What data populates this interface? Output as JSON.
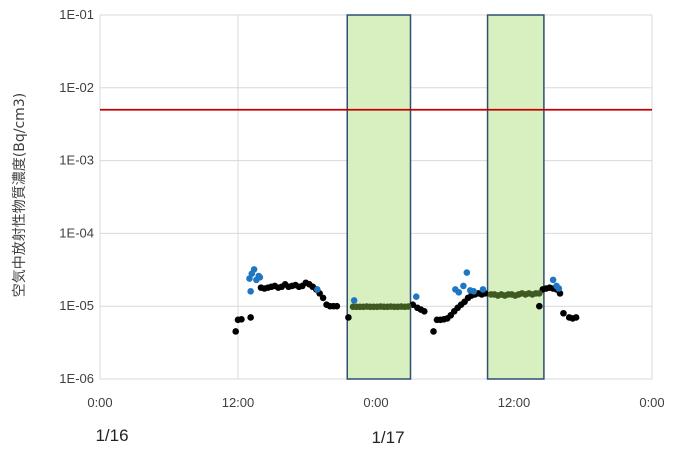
{
  "chart_data": {
    "type": "scatter",
    "ylabel": "空気中放射性物質濃度(Bq/cm3)",
    "y_scale": "log",
    "ylim": [
      1e-06,
      0.1
    ],
    "y_ticks": [
      "1E-06",
      "1E-05",
      "1E-04",
      "1E-03",
      "1E-02",
      "1E-01"
    ],
    "xlim_hours": [
      0,
      48
    ],
    "x_ticks": [
      "0:00",
      "12:00",
      "0:00",
      "12:00",
      "0:00"
    ],
    "date_labels": [
      {
        "text": "1/16",
        "hour": 0
      },
      {
        "text": "1/17",
        "hour": 24
      }
    ],
    "grid": true,
    "threshold": {
      "value": 0.005,
      "color": "#c00000"
    },
    "shaded_regions": [
      {
        "x_start": 21.5,
        "x_end": 27.0,
        "fill": "#d8efc0",
        "border": "#2e4f73"
      },
      {
        "x_start": 33.7,
        "x_end": 38.6,
        "fill": "#d8efc0",
        "border": "#2e4f73"
      }
    ],
    "series": [
      {
        "color": "#000000",
        "points": [
          [
            11.8,
            4.5e-06
          ],
          [
            12.0,
            6.5e-06
          ],
          [
            12.3,
            6.6e-06
          ],
          [
            13.1,
            7e-06
          ],
          [
            14.0,
            1.8e-05
          ],
          [
            14.3,
            1.75e-05
          ],
          [
            14.6,
            1.8e-05
          ],
          [
            14.9,
            1.85e-05
          ],
          [
            15.2,
            1.9e-05
          ],
          [
            15.5,
            1.8e-05
          ],
          [
            15.8,
            1.85e-05
          ],
          [
            16.1,
            2e-05
          ],
          [
            16.4,
            1.85e-05
          ],
          [
            16.7,
            1.9e-05
          ],
          [
            17.0,
            1.95e-05
          ],
          [
            17.3,
            1.85e-05
          ],
          [
            17.6,
            1.9e-05
          ],
          [
            17.9,
            2.1e-05
          ],
          [
            18.2,
            2e-05
          ],
          [
            18.5,
            1.85e-05
          ],
          [
            18.8,
            1.7e-05
          ],
          [
            19.1,
            1.5e-05
          ],
          [
            19.4,
            1.3e-05
          ],
          [
            19.7,
            1.05e-05
          ],
          [
            20.0,
            1e-05
          ],
          [
            20.3,
            1e-05
          ],
          [
            20.6,
            1e-05
          ],
          [
            21.6,
            7e-06
          ],
          [
            27.2,
            1.05e-05
          ],
          [
            27.6,
            9.5e-06
          ],
          [
            27.9,
            9e-06
          ],
          [
            28.2,
            8.5e-06
          ],
          [
            29.0,
            4.5e-06
          ],
          [
            29.3,
            6.5e-06
          ],
          [
            29.6,
            6.5e-06
          ],
          [
            29.9,
            6.6e-06
          ],
          [
            30.2,
            6.8e-06
          ],
          [
            30.5,
            7.5e-06
          ],
          [
            30.8,
            8.5e-06
          ],
          [
            31.1,
            9.5e-06
          ],
          [
            31.4,
            1.05e-05
          ],
          [
            31.7,
            1.15e-05
          ],
          [
            32.0,
            1.3e-05
          ],
          [
            32.3,
            1.4e-05
          ],
          [
            32.6,
            1.45e-05
          ],
          [
            32.9,
            1.5e-05
          ],
          [
            33.2,
            1.45e-05
          ],
          [
            33.5,
            1.5e-05
          ],
          [
            38.2,
            1e-05
          ],
          [
            38.5,
            1.7e-05
          ],
          [
            38.8,
            1.75e-05
          ],
          [
            39.1,
            1.8e-05
          ],
          [
            39.4,
            1.75e-05
          ],
          [
            39.7,
            1.7e-05
          ],
          [
            40.0,
            1.5e-05
          ],
          [
            40.3,
            8e-06
          ],
          [
            40.8,
            7e-06
          ],
          [
            41.1,
            6.8e-06
          ],
          [
            41.4,
            7e-06
          ]
        ]
      },
      {
        "color": "#1f77c4",
        "points": [
          [
            13.0,
            2.4e-05
          ],
          [
            13.2,
            2.8e-05
          ],
          [
            13.4,
            3.2e-05
          ],
          [
            13.6,
            2.3e-05
          ],
          [
            13.8,
            2.6e-05
          ],
          [
            13.1,
            1.6e-05
          ],
          [
            13.9,
            2.5e-05
          ],
          [
            18.9,
            1.7e-05
          ],
          [
            22.1,
            1.2e-05
          ],
          [
            27.5,
            1.35e-05
          ],
          [
            30.9,
            1.7e-05
          ],
          [
            31.2,
            1.55e-05
          ],
          [
            31.6,
            1.9e-05
          ],
          [
            31.9,
            2.9e-05
          ],
          [
            32.2,
            1.65e-05
          ],
          [
            32.5,
            1.6e-05
          ],
          [
            33.3,
            1.7e-05
          ],
          [
            39.4,
            2.3e-05
          ],
          [
            39.7,
            1.9e-05
          ],
          [
            39.9,
            1.75e-05
          ]
        ]
      },
      {
        "color": "#3e5a21",
        "points": [
          [
            22.0,
            9.8e-06
          ],
          [
            22.3,
            9.8e-06
          ],
          [
            22.6,
            9.8e-06
          ],
          [
            22.9,
            9.8e-06
          ],
          [
            23.2,
            9.9e-06
          ],
          [
            23.5,
            9.8e-06
          ],
          [
            23.8,
            9.8e-06
          ],
          [
            24.1,
            9.8e-06
          ],
          [
            24.4,
            9.9e-06
          ],
          [
            24.7,
            9.8e-06
          ],
          [
            25.0,
            9.8e-06
          ],
          [
            25.3,
            9.9e-06
          ],
          [
            25.6,
            9.8e-06
          ],
          [
            25.9,
            9.8e-06
          ],
          [
            26.2,
            9.9e-06
          ],
          [
            26.5,
            9.8e-06
          ],
          [
            26.8,
            9.9e-06
          ],
          [
            34.0,
            1.45e-05
          ],
          [
            34.3,
            1.45e-05
          ],
          [
            34.6,
            1.4e-05
          ],
          [
            34.9,
            1.45e-05
          ],
          [
            35.2,
            1.4e-05
          ],
          [
            35.5,
            1.45e-05
          ],
          [
            35.8,
            1.45e-05
          ],
          [
            36.1,
            1.4e-05
          ],
          [
            36.4,
            1.45e-05
          ],
          [
            36.7,
            1.5e-05
          ],
          [
            37.0,
            1.45e-05
          ],
          [
            37.3,
            1.5e-05
          ],
          [
            37.6,
            1.45e-05
          ],
          [
            37.9,
            1.5e-05
          ],
          [
            38.2,
            1.5e-05
          ]
        ]
      }
    ]
  }
}
